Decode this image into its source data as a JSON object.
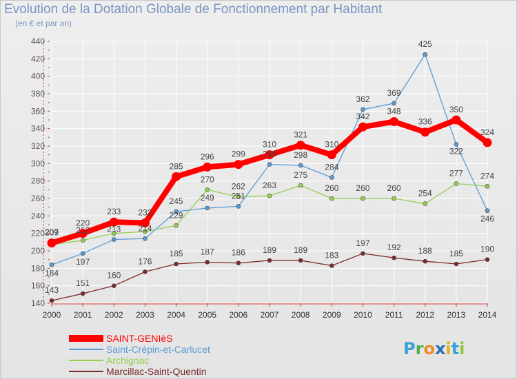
{
  "title": "Evolution de la Dotation Globale de Fonctionnement par Habitant",
  "subtitle": "(en € et par an)",
  "logo": {
    "letters": [
      "P",
      "r",
      "o",
      "x",
      "i",
      "t",
      "i"
    ],
    "colors": [
      "#3aa0d8",
      "#4cb050",
      "#f08a24",
      "#2d6db5",
      "#e0b020",
      "#3aa0d8",
      "#8cc63f"
    ]
  },
  "chart_data": {
    "type": "line",
    "categories": [
      "2000",
      "2001",
      "2002",
      "2003",
      "2004",
      "2005",
      "2006",
      "2007",
      "2008",
      "2009",
      "2010",
      "2011",
      "2012",
      "2013",
      "2014"
    ],
    "ylim": [
      140,
      440
    ],
    "yticks": [
      "140",
      "160",
      "180",
      "200",
      "220",
      "240",
      "260",
      "280",
      "300",
      "320",
      "340",
      "360",
      "380",
      "400",
      "420",
      "440"
    ],
    "grid": true,
    "legend_position": "bottom-left",
    "series": [
      {
        "name": "SAINT-GENIèS",
        "color": "#ff0000",
        "values": [
          209,
          220,
          233,
          232,
          285,
          296,
          299,
          310,
          321,
          310,
          342,
          348,
          336,
          350,
          324
        ]
      },
      {
        "name": "Saint-Crépin-et-Carlucet",
        "color": "#5b9bd5",
        "values": [
          184,
          197,
          213,
          214,
          245,
          249,
          251,
          299,
          298,
          284,
          362,
          369,
          425,
          322,
          246
        ]
      },
      {
        "name": "Archignac",
        "color": "#92d050",
        "values": [
          207,
          212,
          220,
          222,
          229,
          270,
          262,
          263,
          275,
          260,
          260,
          260,
          254,
          277,
          274
        ]
      },
      {
        "name": "Marcillac-Saint-Quentin",
        "color": "#7b2c2c",
        "values": [
          143,
          151,
          160,
          176,
          185,
          187,
          186,
          189,
          189,
          183,
          197,
          192,
          188,
          185,
          190
        ]
      }
    ],
    "data_labels": [
      {
        "series": 0,
        "labels": [
          "209",
          "220",
          "233",
          "232",
          "285",
          "296",
          "299",
          "310",
          "321",
          "310",
          "342",
          "348",
          "336",
          "350",
          "324"
        ]
      },
      {
        "series": 1,
        "labels": [
          "184",
          "197",
          "213",
          "214",
          "245",
          "249",
          "251",
          "299",
          "298",
          "284",
          "362",
          "369",
          "425",
          "322",
          "246"
        ]
      },
      {
        "series": 2,
        "labels": [
          "207",
          "212",
          "",
          "",
          "229",
          "270",
          "262",
          "263",
          "275",
          "260",
          "260",
          "260",
          "254",
          "277",
          "274"
        ]
      },
      {
        "series": 3,
        "labels": [
          "143",
          "151",
          "160",
          "176",
          "185",
          "187",
          "186",
          "189",
          "189",
          "183",
          "197",
          "192",
          "188",
          "185",
          "190"
        ]
      }
    ]
  }
}
